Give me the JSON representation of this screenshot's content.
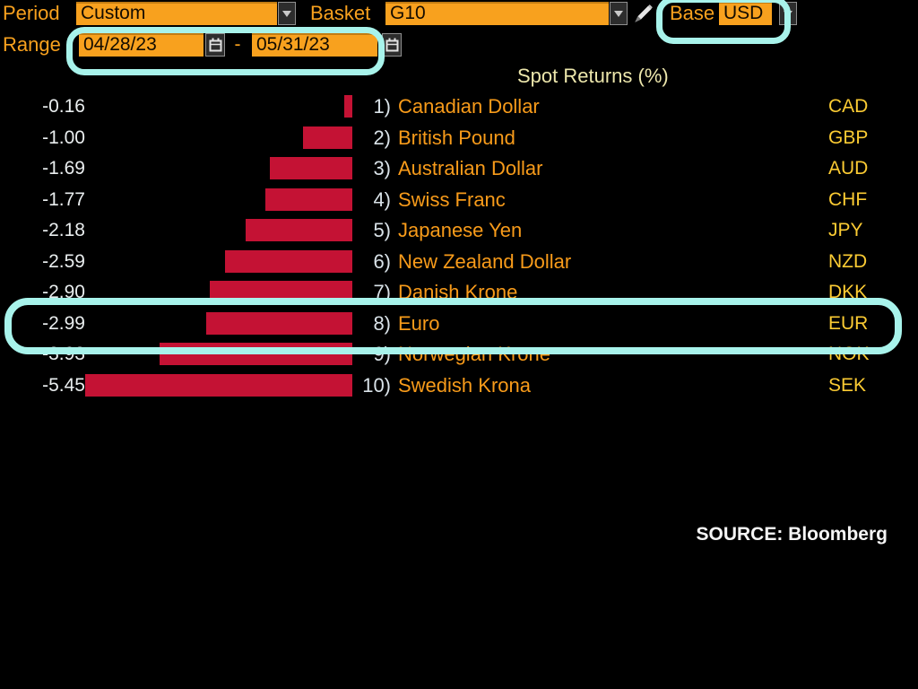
{
  "toolbar": {
    "period_label": "Period",
    "period_value": "Custom",
    "basket_label": "Basket",
    "basket_value": "G10",
    "base_label": "Base",
    "base_value": "USD",
    "range_label": "Range",
    "range_start": "04/28/23",
    "range_separator": "-",
    "range_end": "05/31/23"
  },
  "icons": {
    "dropdown": "chevron-down-icon",
    "calendar": "calendar-icon",
    "edit": "pencil-icon"
  },
  "chart_data": {
    "type": "bar",
    "orientation": "horizontal",
    "title": "Spot Returns (%)",
    "unit": "%",
    "xlim": [
      -5.45,
      0
    ],
    "categories": [
      "Canadian Dollar",
      "British Pound",
      "Australian Dollar",
      "Swiss Franc",
      "Japanese Yen",
      "New Zealand Dollar",
      "Danish Krone",
      "Euro",
      "Norwegian Krone",
      "Swedish Krona"
    ],
    "codes": [
      "CAD",
      "GBP",
      "AUD",
      "CHF",
      "JPY",
      "NZD",
      "DKK",
      "EUR",
      "NOK",
      "SEK"
    ],
    "values": [
      -0.16,
      -1.0,
      -1.69,
      -1.77,
      -2.18,
      -2.59,
      -2.9,
      -2.99,
      -3.93,
      -5.45
    ],
    "value_labels": [
      "-0.16",
      "-1.00",
      "-1.69",
      "-1.77",
      "-2.18",
      "-2.59",
      "-2.90",
      "-2.99",
      "-3.93",
      "-5.45"
    ],
    "row_numbers": [
      "1)",
      "2)",
      "3)",
      "4)",
      "5)",
      "6)",
      "7)",
      "8)",
      "9)",
      "10)"
    ],
    "bar_color": "#C41234",
    "legend": "none",
    "grid": false,
    "highlighted_category": "Euro"
  },
  "annotations": {
    "highlight_color": "#A8F3EB",
    "highlighted_items": [
      "base-currency-selector",
      "range-date-fields",
      "euro-row"
    ]
  },
  "source_note": "SOURCE: Bloomberg",
  "colors": {
    "background": "#000000",
    "accent_orange": "#F8A11E",
    "bar_red": "#C41234",
    "code_yellow": "#FBCB33",
    "title_yellow": "#EDE7AC",
    "value_white": "#E9EDEE",
    "highlight_cyan": "#A8F3EB"
  }
}
